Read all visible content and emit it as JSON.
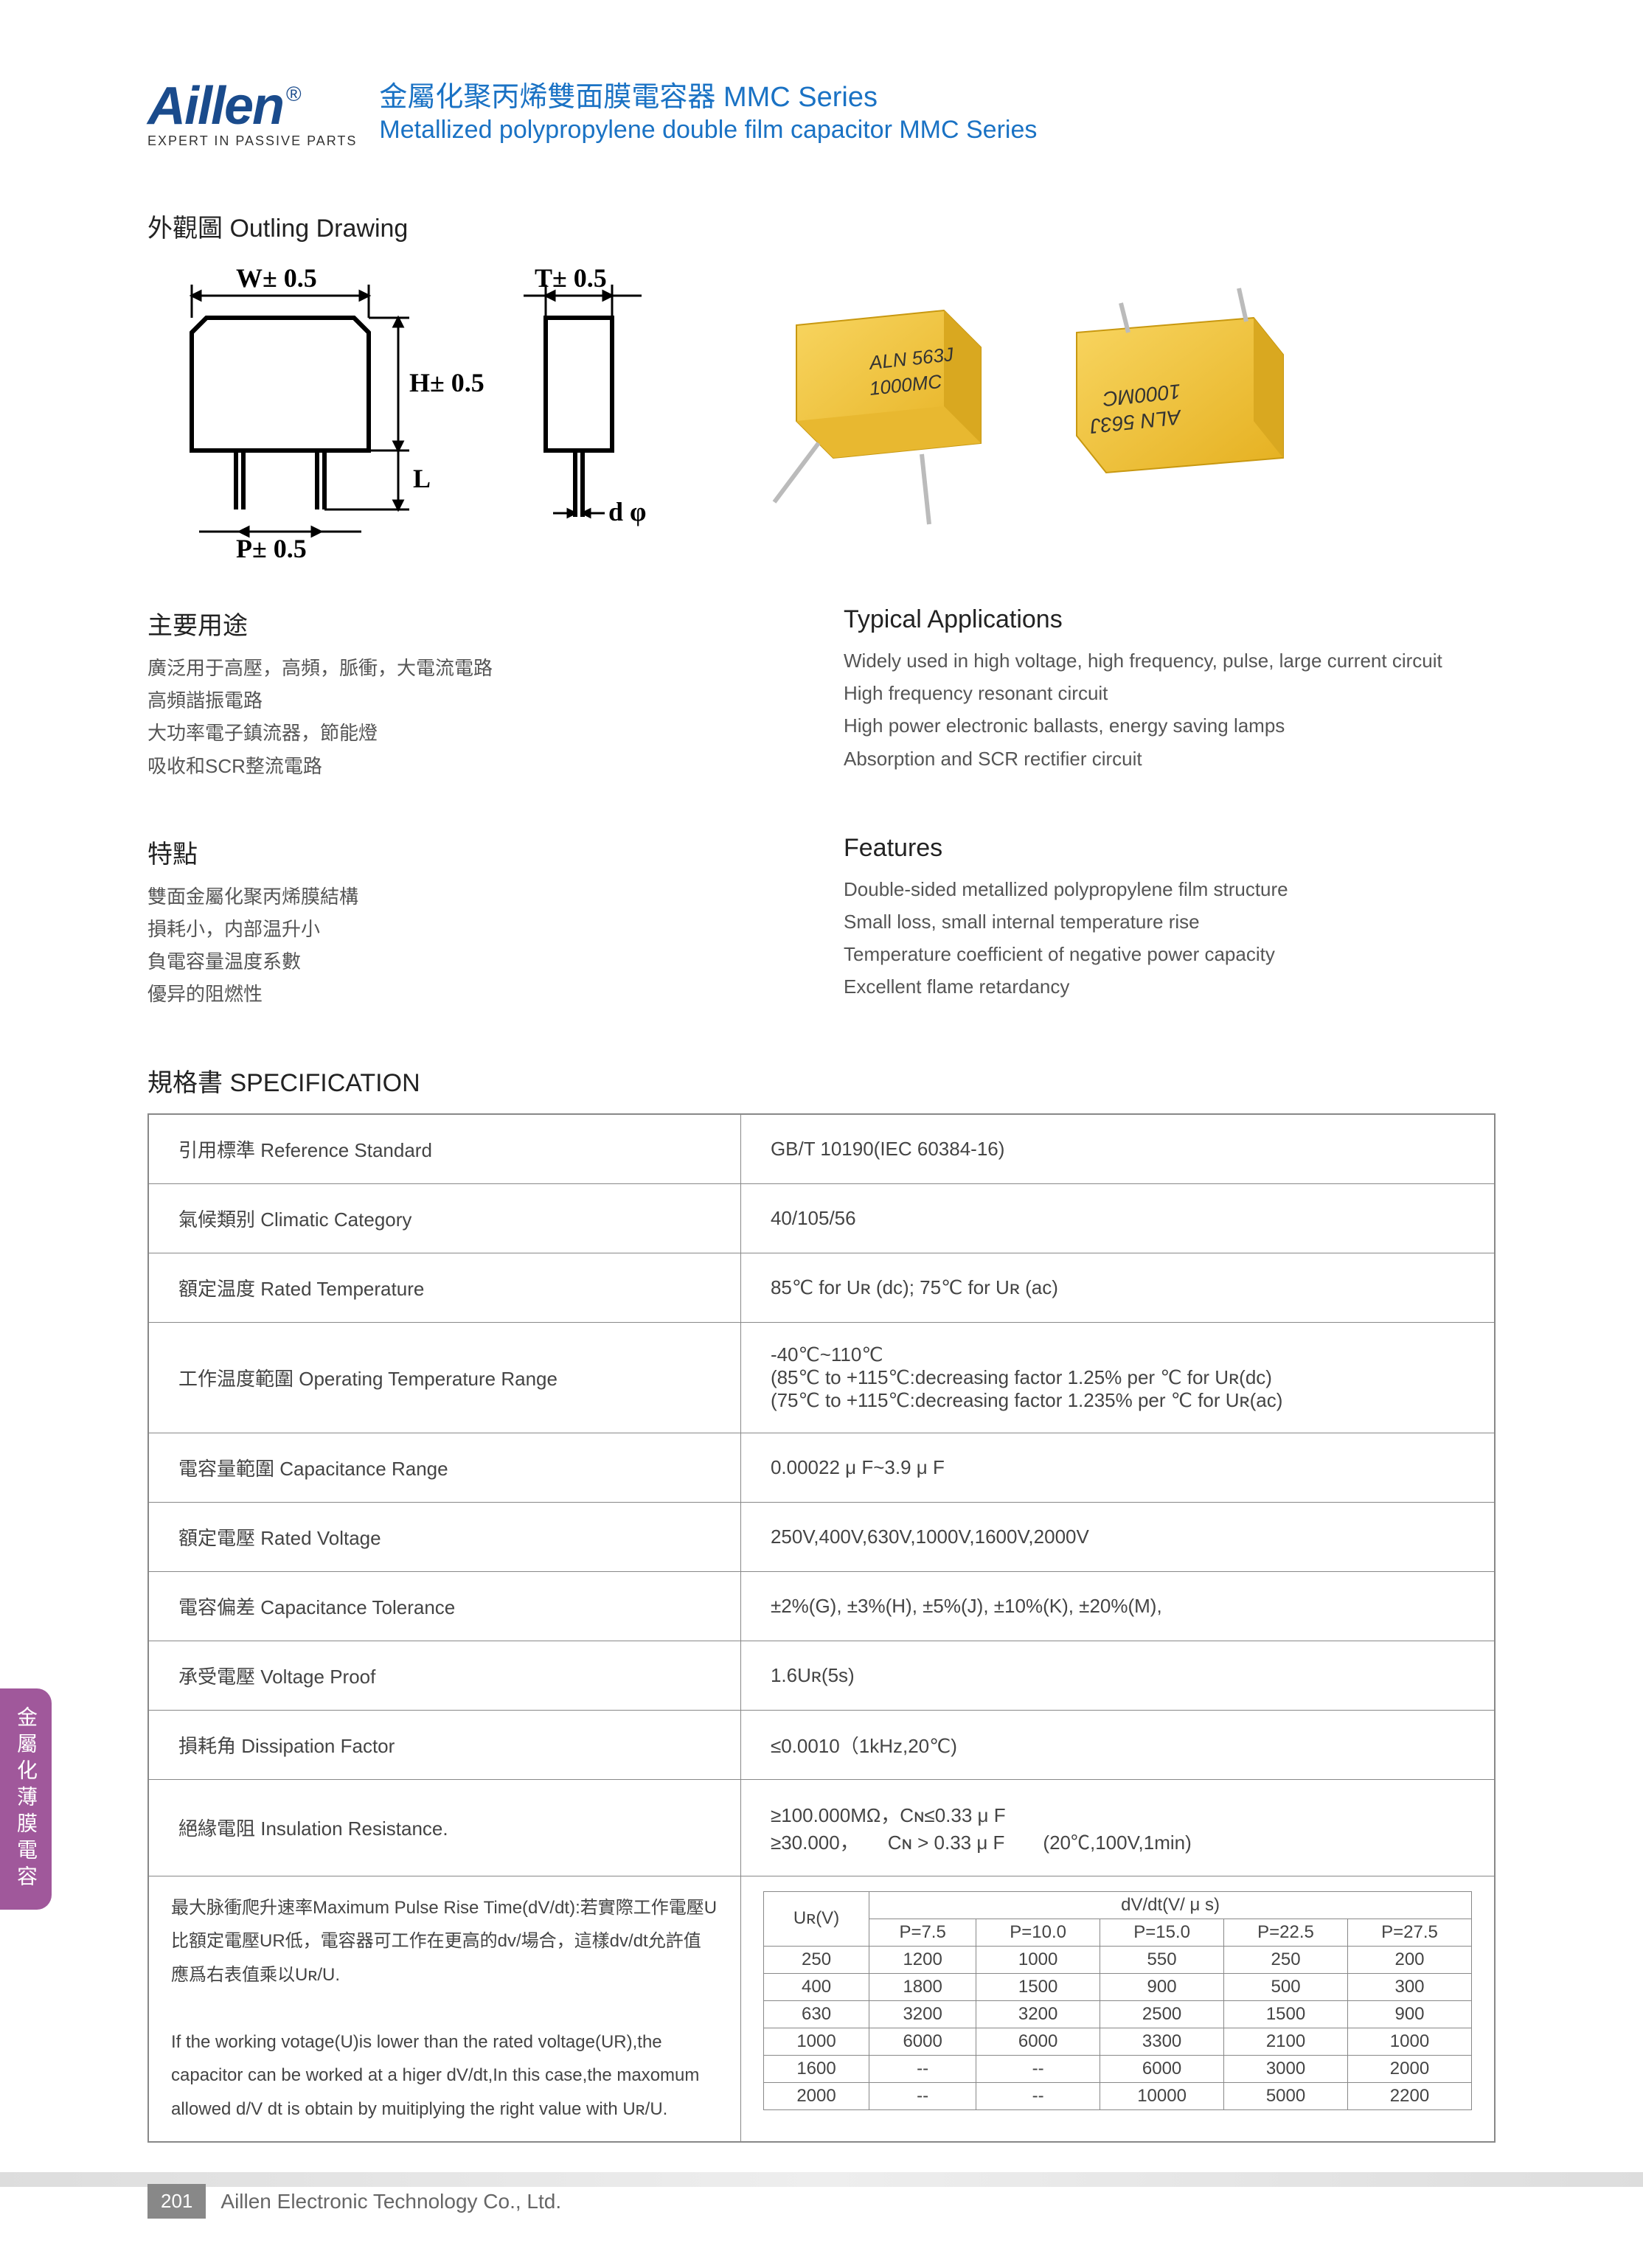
{
  "header": {
    "logo": "Aillen",
    "logo_sub": "EXPERT IN PASSIVE PARTS",
    "title_cn": "金屬化聚丙烯雙面膜電容器 MMC Series",
    "title_en": "Metallized polypropylene double film capacitor MMC Series"
  },
  "outline": {
    "title": "外觀圖  Outling Drawing",
    "labels": {
      "W": "W± 0.5",
      "T": "T± 0.5",
      "H": "H± 0.5",
      "L": "L",
      "P": "P± 0.5",
      "d": "d φ"
    },
    "cap_label1": "ALN 563J",
    "cap_label2": "1000MC"
  },
  "uses": {
    "h_cn": "主要用途",
    "lines_cn": [
      "廣泛用于高壓，高頻，脈衝，大電流電路",
      "高頻諧振電路",
      "大功率電子鎮流器，節能燈",
      "吸收和SCR整流電路"
    ],
    "h_en": "Typical Applications",
    "lines_en": [
      "Widely used in high voltage, high frequency, pulse, large current circuit",
      "High frequency resonant circuit",
      "High power electronic ballasts, energy saving lamps",
      "Absorption and SCR rectifier circuit"
    ]
  },
  "features": {
    "h_cn": "特點",
    "lines_cn": [
      "雙面金屬化聚丙烯膜結構",
      "損耗小，内部温升小",
      "負電容量温度系數",
      "優异的阻燃性"
    ],
    "h_en": "Features",
    "lines_en": [
      "Double-sided metallized polypropylene film structure",
      "Small loss, small internal temperature rise",
      "Temperature coefficient of negative power capacity",
      "Excellent flame retardancy"
    ]
  },
  "spec": {
    "title": "規格書 SPECIFICATION",
    "rows": [
      {
        "label": "引用標準  Reference Standard",
        "value": "GB/T 10190(IEC 60384-16)"
      },
      {
        "label": "氣候類别  Climatic Category",
        "value": "40/105/56"
      },
      {
        "label": "額定温度 Rated Temperature",
        "value": "85℃ for Uʀ (dc); 75℃ for Uʀ (ac)"
      },
      {
        "label": "工作温度範圍  Operating Temperature Range",
        "value": "-40℃~110℃\n(85℃ to +115℃:decreasing factor 1.25% per ℃ for Uʀ(dc)\n(75℃ to +115℃:decreasing factor 1.235% per ℃ for Uʀ(ac)"
      },
      {
        "label": "電容量範圍 Capacitance Range",
        "value": "0.00022 μ F~3.9 μ F"
      },
      {
        "label": "額定電壓  Rated Voltage",
        "value": "250V,400V,630V,1000V,1600V,2000V"
      },
      {
        "label": "電容偏差  Capacitance Tolerance",
        "value": "±2%(G), ±3%(H), ±5%(J), ±10%(K), ±20%(M),"
      },
      {
        "label": "承受電壓  Voltage Proof",
        "value": "1.6Uʀ(5s)"
      },
      {
        "label": "損耗角  Dissipation Factor",
        "value": "≤0.0010（1kHz,20℃)"
      },
      {
        "label": "絕緣電阻  Insulation Resistance.",
        "value": "≥100.000MΩ，Cɴ≤0.33 μ F\n≥30.000，　　Cɴ > 0.33 μ F　　(20℃,100V,1min)"
      }
    ],
    "pulse": {
      "text_cn": "最大脉衝爬升速率Maximum Pulse Rise Time(dV/dt):若實際工作電壓U比額定電壓UR低，電容器可工作在更高的dv/場合，這樣dv/dt允許值應爲右表值乘以Uʀ/U.",
      "text_en": "If the working votage(U)is lower than the rated voltage(UR),the capacitor can be worked at a higer dV/dt,In this case,the maxomum allowed d/V dt is obtain by muitiplying the right value with Uʀ/U.",
      "header_top": "dV/dt(V/ μ s)",
      "ur_label": "Uʀ(V)",
      "p_cols": [
        "P=7.5",
        "P=10.0",
        "P=15.0",
        "P=22.5",
        "P=27.5"
      ],
      "rows": [
        {
          "ur": "250",
          "v": [
            "1200",
            "1000",
            "550",
            "250",
            "200"
          ]
        },
        {
          "ur": "400",
          "v": [
            "1800",
            "1500",
            "900",
            "500",
            "300"
          ]
        },
        {
          "ur": "630",
          "v": [
            "3200",
            "3200",
            "2500",
            "1500",
            "900"
          ]
        },
        {
          "ur": "1000",
          "v": [
            "6000",
            "6000",
            "3300",
            "2100",
            "1000"
          ]
        },
        {
          "ur": "1600",
          "v": [
            "--",
            "--",
            "6000",
            "3000",
            "2000"
          ]
        },
        {
          "ur": "2000",
          "v": [
            "--",
            "--",
            "10000",
            "5000",
            "2200"
          ]
        }
      ]
    }
  },
  "side_tab": "金屬化薄膜電容",
  "footer": {
    "page": "201",
    "text": "Aillen Electronic Technology Co., Ltd."
  },
  "colors": {
    "brand_blue": "#1a4b8c",
    "title_blue": "#1a72c4",
    "tab_purple": "#a0589b",
    "cap_yellow": "#f5c733",
    "cap_yellow_dark": "#d9a820",
    "border_gray": "#888888"
  }
}
